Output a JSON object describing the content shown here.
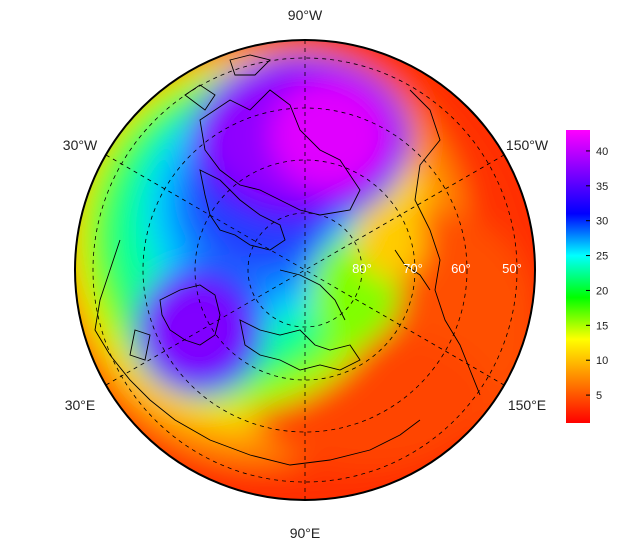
{
  "map": {
    "projection": "north-polar-stereographic",
    "longitude_labels": {
      "top": "90°W",
      "upper_left": "30°W",
      "upper_right": "150°W",
      "lower_left": "30°E",
      "lower_right": "150°E",
      "bottom": "90°E"
    },
    "latitude_labels": [
      "80°",
      "70°",
      "60°",
      "50°"
    ],
    "colors": {
      "frame": "#000000",
      "coastline": "#000000",
      "graticule": "#000000"
    }
  },
  "colorbar": {
    "min": 1,
    "max": 43,
    "ticks": [
      5,
      10,
      15,
      20,
      25,
      30,
      35,
      40
    ],
    "colors": [
      "#ff0000",
      "#ff8000",
      "#ffff00",
      "#00ff00",
      "#00ffff",
      "#0000ff",
      "#8000ff",
      "#ff00ff"
    ]
  }
}
